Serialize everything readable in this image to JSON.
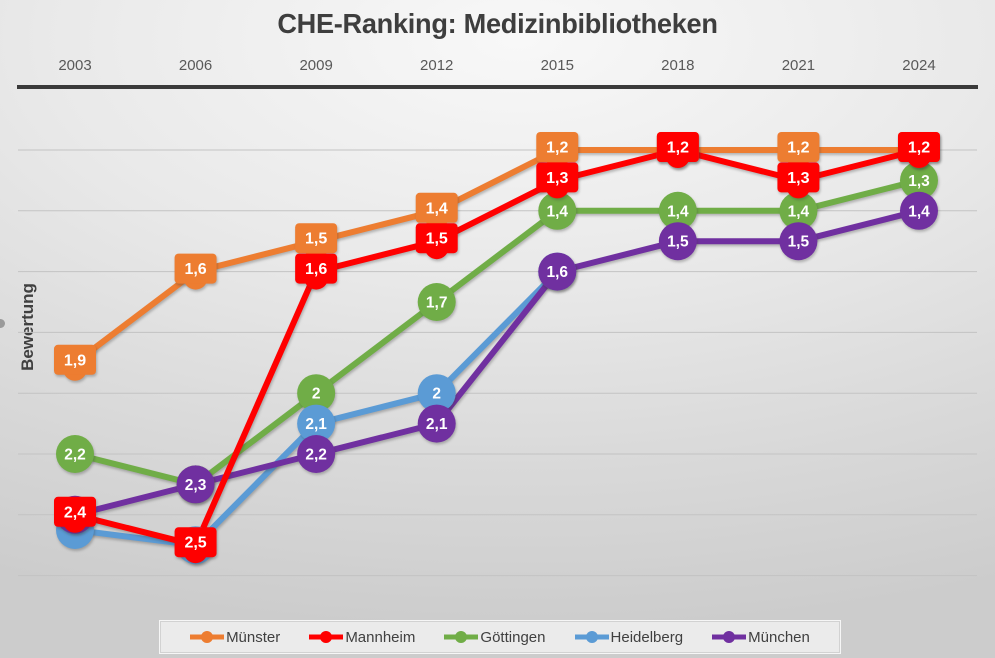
{
  "title": "CHE-Ranking: Medizinbibliotheken",
  "chart_data": {
    "type": "line",
    "title": "CHE-Ranking: Medizinbibliotheken",
    "xlabel": "",
    "ylabel": "Bewertung",
    "categories": [
      "2003",
      "2006",
      "2009",
      "2012",
      "2015",
      "2018",
      "2021",
      "2024"
    ],
    "y_axis": {
      "min": 1.2,
      "max": 2.6,
      "step": 0.2,
      "inverted": true,
      "gridlines": true,
      "tick_labels_visible": false,
      "note": "lower rating = better, plotted higher; axis tick labels not shown"
    },
    "legend_position": "bottom",
    "series": [
      {
        "name": "Münster",
        "color": "#ED7D31",
        "marker": "square-badge",
        "values": [
          1.9,
          1.6,
          1.5,
          1.4,
          1.2,
          1.2,
          1.2,
          1.2
        ],
        "labels": [
          "1,9",
          "1,6",
          "1,5",
          "1,4",
          "1,2",
          null,
          "1,2",
          null
        ]
      },
      {
        "name": "Mannheim",
        "color": "#FF0000",
        "marker": "square-badge",
        "values": [
          2.4,
          2.5,
          1.6,
          1.5,
          1.3,
          1.2,
          1.3,
          1.2
        ],
        "labels": [
          "2,4",
          "2,5",
          "1,6",
          "1,5",
          "1,3",
          "1,2",
          "1,3",
          "1,2"
        ]
      },
      {
        "name": "Göttingen",
        "color": "#70AD47",
        "marker": "circle",
        "values": [
          2.2,
          2.3,
          2.0,
          1.7,
          1.4,
          1.4,
          1.4,
          1.3
        ],
        "labels": [
          "2,2",
          null,
          "2",
          "1,7",
          "1,4",
          "1,4",
          "1,4",
          "1,3"
        ]
      },
      {
        "name": "Heidelberg",
        "color": "#5B9BD5",
        "marker": "circle",
        "values": [
          2.45,
          2.5,
          2.1,
          2.0,
          1.6,
          null,
          null,
          null
        ],
        "labels": [
          null,
          null,
          "2,1",
          "2",
          null,
          null,
          null,
          null
        ]
      },
      {
        "name": "München",
        "color": "#7030A0",
        "marker": "circle",
        "values": [
          2.4,
          2.3,
          2.2,
          2.1,
          1.6,
          1.5,
          1.5,
          1.4
        ],
        "labels": [
          null,
          "2,3",
          "2,2",
          "2,1",
          "1,6",
          "1,5",
          "1,5",
          "1,4"
        ]
      }
    ],
    "legend_entries": [
      "Münster",
      "Mannheim",
      "Göttingen",
      "Heidelberg",
      "München"
    ]
  }
}
